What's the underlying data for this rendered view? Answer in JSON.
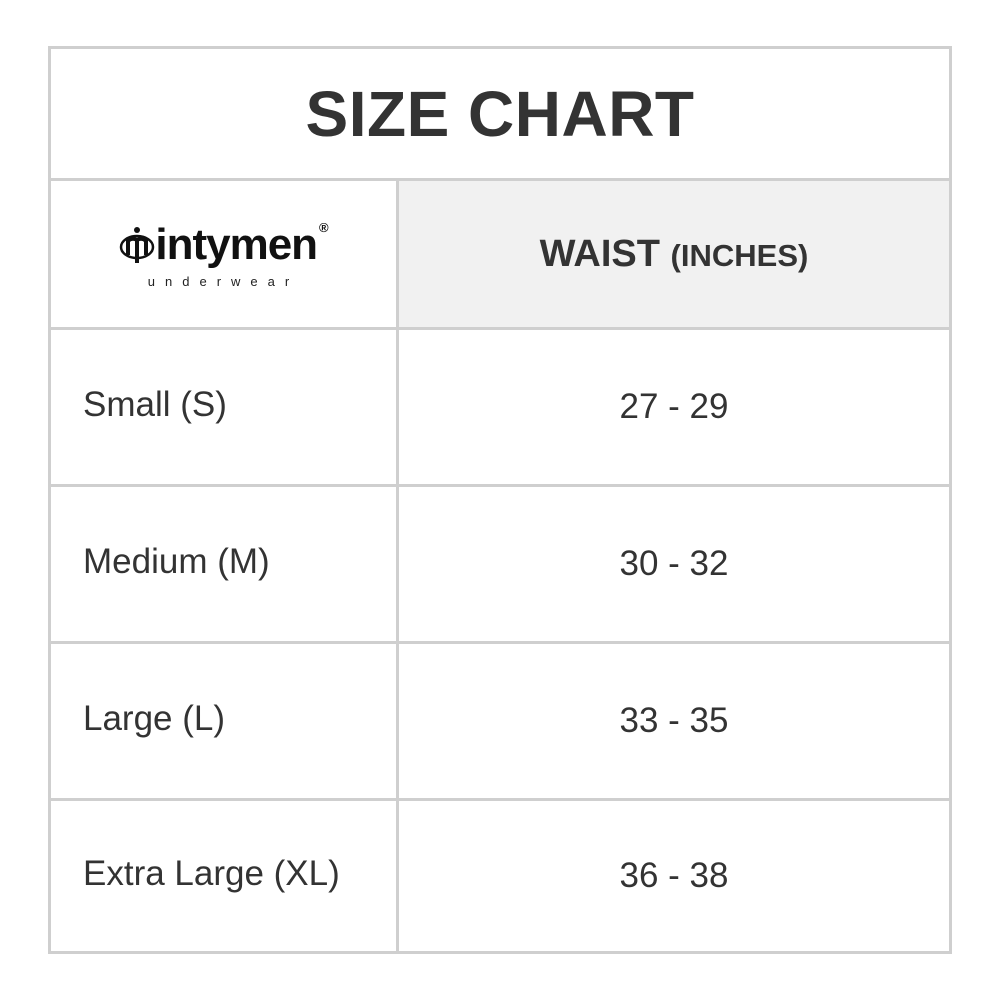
{
  "title": "SIZE CHART",
  "logo": {
    "brand": "mintymen",
    "registered": "®",
    "tagline": "underwear"
  },
  "header": {
    "column": "WAIST",
    "unit": "(INCHES)"
  },
  "rows": [
    {
      "size": "Small (S)",
      "waist": "27 - 29"
    },
    {
      "size": "Medium (M)",
      "waist": "30 - 32"
    },
    {
      "size": "Large (L)",
      "waist": "33 - 35"
    },
    {
      "size": "Extra Large (XL)",
      "waist": "36 - 38"
    }
  ],
  "colors": {
    "text": "#333333",
    "border": "#cfcfcf",
    "header_bg": "#f1f1f1"
  }
}
